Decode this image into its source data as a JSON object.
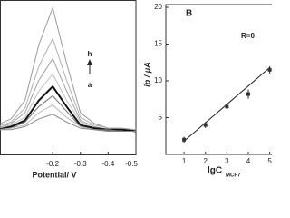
{
  "chart_data": [
    {
      "type": "line",
      "xlabel": "Potential/ V",
      "annotations": [
        "h",
        "a"
      ],
      "x": [
        0,
        -0.05,
        -0.1,
        -0.15,
        -0.2,
        -0.25,
        -0.3,
        -0.35,
        -0.4,
        -0.45,
        -0.5
      ],
      "xlim": [
        -0.01,
        -0.5
      ],
      "xticks": [
        -0.2,
        -0.3,
        -0.4,
        -0.5
      ],
      "ylim": [
        0,
        100
      ],
      "series": [
        {
          "color": "#9a9a9a",
          "values": [
            19,
            23,
            35,
            71,
            95,
            59,
            27,
            20,
            17,
            17,
            16
          ]
        },
        {
          "color": "#b0b0b0",
          "values": [
            18,
            21,
            30,
            57,
            75,
            48,
            24,
            19,
            17,
            16,
            16
          ]
        },
        {
          "color": "#a0a0a0",
          "values": [
            17,
            20,
            27,
            48,
            62,
            41,
            22,
            18,
            16,
            16,
            15
          ]
        },
        {
          "color": "#c0c0c0",
          "values": [
            17,
            19,
            24,
            41,
            52,
            35,
            21,
            17,
            16,
            16,
            15
          ]
        },
        {
          "color": "#111111",
          "values": [
            16,
            18,
            22,
            35,
            44,
            31,
            19,
            17,
            16,
            16,
            15
          ]
        },
        {
          "color": "#707070",
          "values": [
            16,
            17,
            21,
            31,
            38,
            28,
            18,
            16,
            16,
            15,
            15
          ]
        },
        {
          "color": "#b8b8b8",
          "values": [
            16,
            17,
            19,
            27,
            32,
            24,
            18,
            16,
            15,
            15,
            15
          ]
        },
        {
          "color": "#888888",
          "values": [
            16,
            16,
            18,
            23,
            26,
            21,
            17,
            16,
            15,
            15,
            15
          ]
        }
      ]
    },
    {
      "type": "scatter",
      "panel_label": "B",
      "annotation": "R=0",
      "ylabel": "ip / μA",
      "xlabel": "lgC",
      "xlabel_sub": "MCF7",
      "x": [
        1,
        2,
        3,
        4,
        5
      ],
      "values": [
        2.0,
        4.0,
        6.5,
        8.2,
        11.5
      ],
      "errors": [
        0.4,
        0.4,
        0.3,
        0.6,
        0.5
      ],
      "fit": {
        "x": [
          1,
          5
        ],
        "values": [
          1.8,
          11.8
        ]
      },
      "color": "#333333",
      "xlim": [
        0.15,
        5.1
      ],
      "xticks": [
        1,
        2,
        3,
        4,
        5
      ],
      "ylim": [
        0,
        20
      ],
      "yticks": [
        5,
        10,
        15,
        20
      ]
    }
  ]
}
